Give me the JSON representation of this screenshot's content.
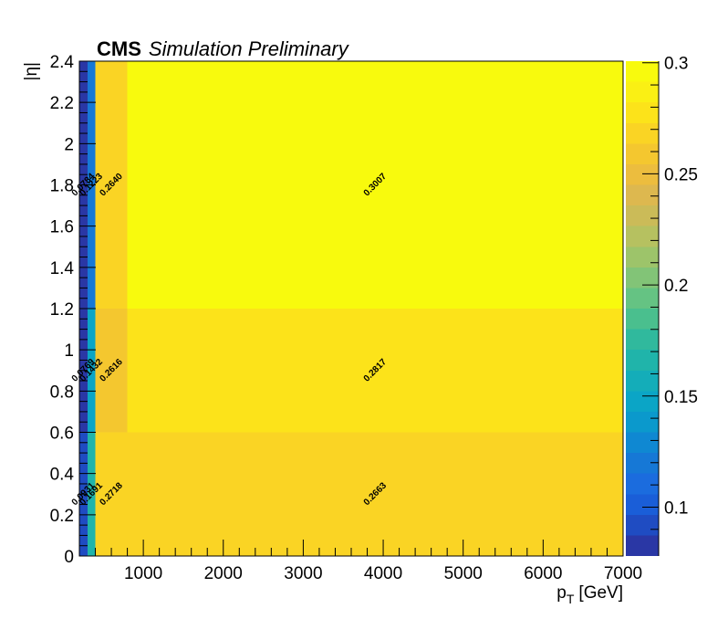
{
  "chart_data": {
    "type": "heatmap",
    "title_bold": "CMS",
    "title_italic": "Simulation Preliminary",
    "xlabel_main": "p",
    "xlabel_sub": "T",
    "xlabel_unit": "[GeV]",
    "ylabel": "|η|",
    "xlim": [
      200,
      7000
    ],
    "ylim": [
      0,
      2.4
    ],
    "x_bin_edges": [
      200,
      300,
      400,
      800,
      7000
    ],
    "y_bin_edges": [
      0,
      0.6,
      1.2,
      2.4
    ],
    "values": [
      [
        0.0931,
        0.1691,
        0.2718,
        0.2663
      ],
      [
        0.0769,
        0.1432,
        0.2616,
        0.2817
      ],
      [
        0.0784,
        0.1223,
        0.264,
        0.3007
      ]
    ],
    "labels": [
      [
        "0.0931",
        "0.1691",
        "0.2718",
        "0.2663"
      ],
      [
        "0.0769",
        "0.1432",
        "0.2616",
        "0.2817"
      ],
      [
        "0.0784",
        "0.1223",
        "0.2640",
        "0.3007"
      ]
    ],
    "x_ticks": [
      {
        "value": 1000,
        "label": "1000"
      },
      {
        "value": 2000,
        "label": "2000"
      },
      {
        "value": 3000,
        "label": "3000"
      },
      {
        "value": 4000,
        "label": "4000"
      },
      {
        "value": 5000,
        "label": "5000"
      },
      {
        "value": 6000,
        "label": "6000"
      },
      {
        "value": 7000,
        "label": "7000"
      }
    ],
    "y_ticks": [
      {
        "value": 0,
        "label": "0"
      },
      {
        "value": 0.2,
        "label": "0.2"
      },
      {
        "value": 0.4,
        "label": "0.4"
      },
      {
        "value": 0.6,
        "label": "0.6"
      },
      {
        "value": 0.8,
        "label": "0.8"
      },
      {
        "value": 1.0,
        "label": "1"
      },
      {
        "value": 1.2,
        "label": "1.2"
      },
      {
        "value": 1.4,
        "label": "1.4"
      },
      {
        "value": 1.6,
        "label": "1.6"
      },
      {
        "value": 1.8,
        "label": "1.8"
      },
      {
        "value": 2.0,
        "label": "2"
      },
      {
        "value": 2.2,
        "label": "2.2"
      },
      {
        "value": 2.4,
        "label": "2.4"
      }
    ],
    "zlim": [
      0.078,
      0.3007
    ],
    "z_ticks": [
      {
        "value": 0.1,
        "label": "0.1"
      },
      {
        "value": 0.15,
        "label": "0.15"
      },
      {
        "value": 0.2,
        "label": "0.2"
      },
      {
        "value": 0.25,
        "label": "0.25"
      },
      {
        "value": 0.3,
        "label": "0.3"
      }
    ],
    "palette": [
      "#2a37a5",
      "#1f4cc2",
      "#1a5ed8",
      "#1b6cde",
      "#1678d6",
      "#0f88d2",
      "#0b99cc",
      "#0ba5c6",
      "#14adb9",
      "#20b4aa",
      "#30b99d",
      "#4abf8e",
      "#65c383",
      "#82c477",
      "#9dc46a",
      "#b6c160",
      "#cbbb58",
      "#ddb84f",
      "#ecbd3e",
      "#f4c72f",
      "#fad424",
      "#fce31a",
      "#faf014",
      "#f8fa0d"
    ],
    "label_color": "#000000"
  }
}
